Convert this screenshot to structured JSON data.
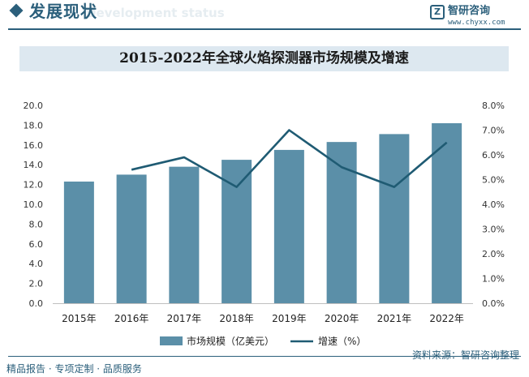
{
  "header": {
    "title": "发展现状",
    "subtitle": "Development status",
    "brand_name": "智研咨询",
    "brand_url": "www.chyxx.com"
  },
  "footer": {
    "left": "精品报告 · 专项定制 · 品质服务",
    "right": "资料来源：智研咨询整理"
  },
  "colors": {
    "accent": "#2b5f7b",
    "bar": "#5b8fa8",
    "line": "#1f5b73",
    "title_band": "#dde8f0"
  },
  "chart_data": {
    "type": "bar",
    "title": "2015-2022年全球火焰探测器市场规模及增速",
    "categories": [
      "2015年",
      "2016年",
      "2017年",
      "2018年",
      "2019年",
      "2020年",
      "2021年",
      "2022年"
    ],
    "series": [
      {
        "name": "市场规模（亿美元）",
        "type": "bar",
        "axis": "left",
        "values": [
          12.3,
          13.0,
          13.8,
          14.5,
          15.5,
          16.3,
          17.1,
          18.2
        ]
      },
      {
        "name": "增速（%）",
        "type": "line",
        "axis": "right",
        "values": [
          null,
          5.4,
          5.9,
          4.7,
          7.0,
          5.5,
          4.7,
          6.5
        ]
      }
    ],
    "y_left": {
      "min": 0,
      "max": 20,
      "ticks": [
        "0.0",
        "2.0",
        "4.0",
        "6.0",
        "8.0",
        "10.0",
        "12.0",
        "14.0",
        "16.0",
        "18.0",
        "20.0"
      ]
    },
    "y_right": {
      "min": 0,
      "max": 8,
      "ticks": [
        "0.0%",
        "1.0%",
        "2.0%",
        "3.0%",
        "4.0%",
        "5.0%",
        "6.0%",
        "7.0%",
        "8.0%"
      ]
    },
    "grid": false,
    "legend_position": "bottom"
  }
}
